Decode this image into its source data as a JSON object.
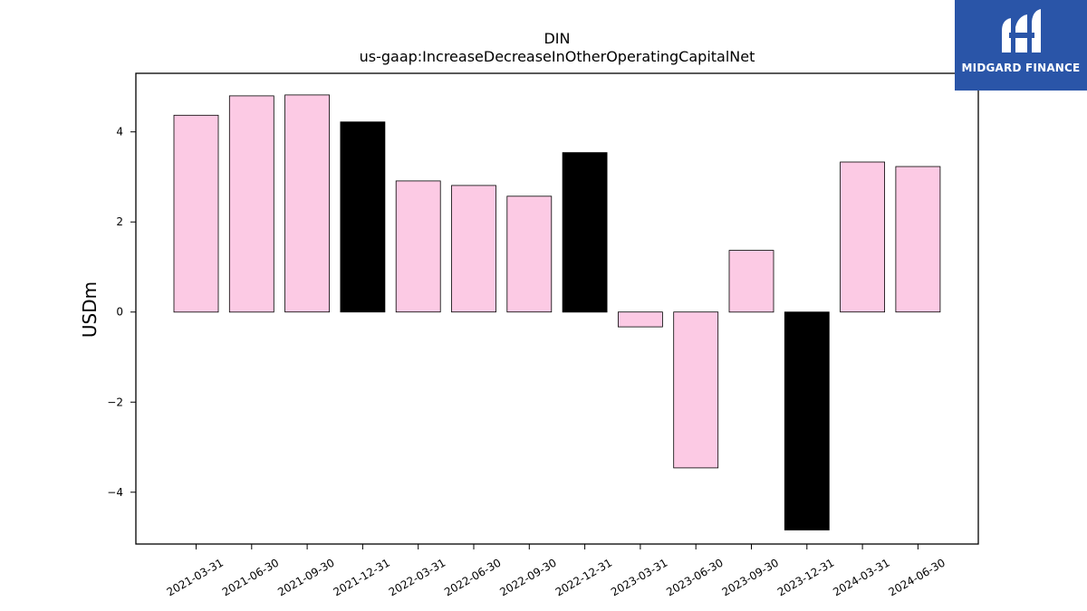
{
  "chart_data": {
    "type": "bar",
    "title": "DIN",
    "subtitle": "us-gaap:IncreaseDecreaseInOtherOperatingCapitalNet",
    "xlabel": "",
    "ylabel": "USDm",
    "ylim": [
      -5.15,
      5.3
    ],
    "yticks": [
      4,
      2,
      0,
      -2,
      -4
    ],
    "ytick_labels": [
      "4",
      "2",
      "0",
      "−2",
      "−4"
    ],
    "grid": false,
    "categories": [
      "2021-03-31",
      "2021-06-30",
      "2021-09-30",
      "2021-12-31",
      "2022-03-31",
      "2022-06-30",
      "2022-09-30",
      "2022-12-31",
      "2023-03-31",
      "2023-06-30",
      "2023-09-30",
      "2023-12-31",
      "2024-03-31",
      "2024-06-30"
    ],
    "values": [
      4.37,
      4.8,
      4.82,
      4.22,
      2.91,
      2.81,
      2.57,
      3.54,
      -0.33,
      -3.46,
      1.37,
      -4.84,
      3.33,
      3.23
    ],
    "bar_colors": [
      "#fccae4",
      "#fccae4",
      "#fccae4",
      "#000000",
      "#fccae4",
      "#fccae4",
      "#fccae4",
      "#000000",
      "#fccae4",
      "#fccae4",
      "#fccae4",
      "#000000",
      "#fccae4",
      "#fccae4"
    ],
    "bar_edge_color": "#000000"
  },
  "logo": {
    "text": "MIDGARD FINANCE",
    "background": "#2a55a8",
    "icon": "midgard-logo-icon"
  }
}
